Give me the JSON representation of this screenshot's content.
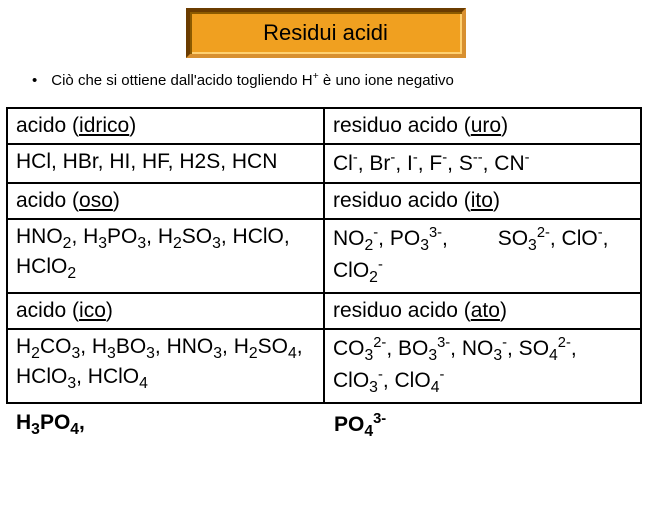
{
  "title": "Residui acidi",
  "bullet_html": "Ciò che si ottiene dall'acido togliendo H<sup>+</sup> è uno ione negativo",
  "rows": [
    {
      "left_hdr": "acido (<span class='u'>idrico</span>)",
      "right_hdr": "residuo acido (<span class='u'>uro</span>)",
      "left_body": "HCl, HBr, HI, HF, H2S, HCN",
      "right_body": "Cl<sup>-</sup>, Br<sup>-</sup>, I<sup>-</sup>, F<sup>-</sup>, S<sup>--</sup>, CN<sup>-</sup>"
    },
    {
      "left_hdr": "acido (<span class='u'>oso</span>)",
      "right_hdr": "residuo acido (<span class='u'>ito</span>)",
      "left_body": "HNO<sub>2</sub>, H<sub>3</sub>PO<sub>3</sub>, H<sub>2</sub>SO<sub>3</sub>, HClO, HClO<sub>2</sub>",
      "right_body": "NO<sub>2</sub><sup>-</sup>, PO<sub>3</sub><sup>3-</sup>,<span class='gap'></span> SO<sub>3</sub><sup>2-</sup>, ClO<sup>-</sup>, ClO<sub>2</sub><sup>-</sup>"
    },
    {
      "left_hdr": "acido (<span class='u'>ico</span>)",
      "right_hdr": "residuo acido (<span class='u'>ato</span>)",
      "left_body": "H<sub>2</sub>CO<sub>3</sub>, H<sub>3</sub>BO<sub>3</sub>, HNO<sub>3</sub>, H<sub>2</sub>SO<sub>4</sub>, HClO<sub>3</sub>, HClO<sub>4</sub>",
      "right_body": "CO<sub>3</sub><sup>2-</sup>, BO<sub>3</sub><sup>3-</sup>, NO<sub>3</sub><sup>-</sup>, SO<sub>4</sub><sup>2-</sup>, ClO<sub>3</sub><sup>-</sup>, ClO<sub>4</sub><sup>-</sup>"
    }
  ],
  "extra": {
    "left": "H<sub>3</sub>PO<sub>4</sub>,",
    "right": "PO<sub>4</sub><sup>3-</sup>"
  },
  "colors": {
    "title_bg": "#f0a020",
    "border": "#000000",
    "text": "#000000",
    "page_bg": "#ffffff"
  }
}
